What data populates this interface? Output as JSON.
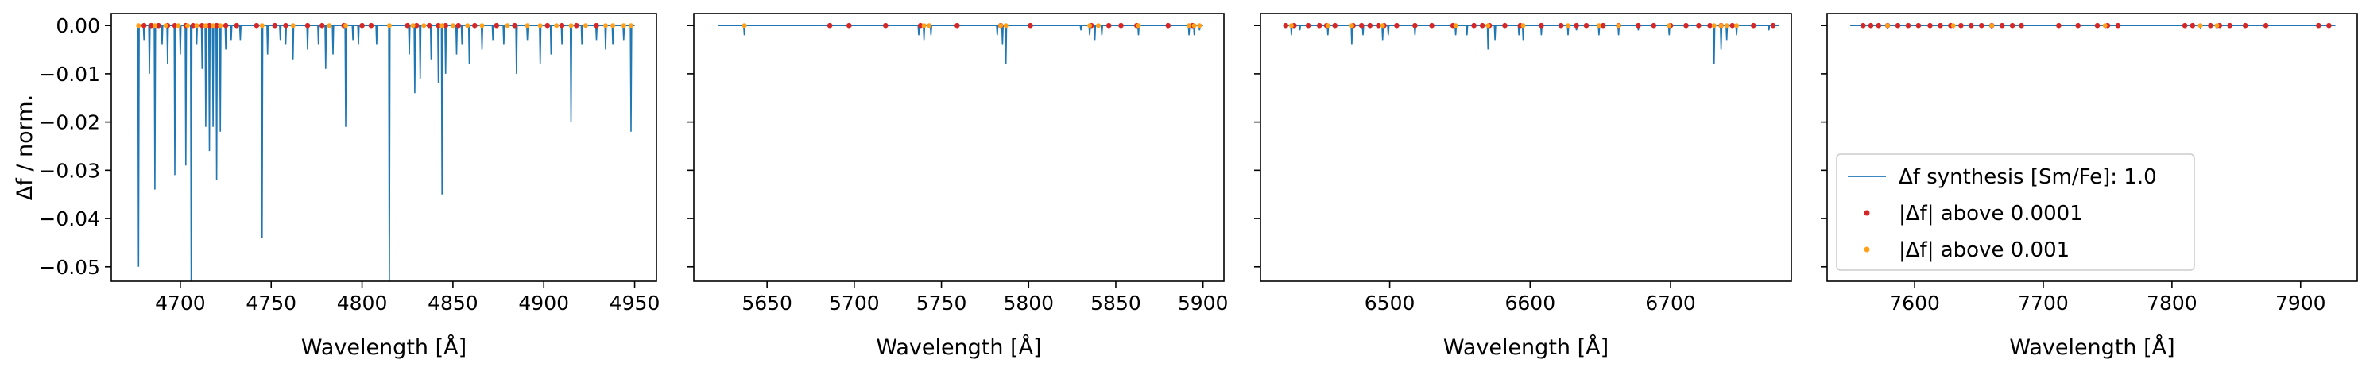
{
  "chart_data": [
    {
      "type": "line",
      "panel": 1,
      "xlabel": "Wavelength [Å]",
      "ylabel": "Δf / norm.",
      "xlim": [
        4662,
        4962
      ],
      "ylim": [
        -0.053,
        0.0025
      ],
      "xticks": [
        4700,
        4750,
        4800,
        4850,
        4900,
        4950
      ],
      "yticks": [
        0.0,
        -0.01,
        -0.02,
        -0.03,
        -0.04,
        -0.05
      ],
      "ytick_labels": [
        "0.00",
        "−0.01",
        "−0.02",
        "−0.03",
        "−0.04",
        "−0.05"
      ],
      "line_range": [
        4676,
        4950
      ],
      "dips": [
        [
          4677,
          -0.05
        ],
        [
          4680,
          -0.003
        ],
        [
          4683,
          -0.01
        ],
        [
          4686,
          -0.034
        ],
        [
          4690,
          -0.004
        ],
        [
          4693,
          -0.008
        ],
        [
          4697,
          -0.031
        ],
        [
          4700,
          -0.006
        ],
        [
          4703,
          -0.029
        ],
        [
          4706,
          -0.055
        ],
        [
          4709,
          -0.004
        ],
        [
          4712,
          -0.009
        ],
        [
          4714,
          -0.021
        ],
        [
          4716,
          -0.026
        ],
        [
          4718,
          -0.021
        ],
        [
          4720,
          -0.032
        ],
        [
          4722,
          -0.022
        ],
        [
          4725,
          -0.005
        ],
        [
          4728,
          -0.003
        ],
        [
          4733,
          -0.003
        ],
        [
          4745,
          -0.044
        ],
        [
          4748,
          -0.006
        ],
        [
          4755,
          -0.003
        ],
        [
          4758,
          -0.004
        ],
        [
          4762,
          -0.007
        ],
        [
          4770,
          -0.005
        ],
        [
          4776,
          -0.004
        ],
        [
          4780,
          -0.009
        ],
        [
          4784,
          -0.006
        ],
        [
          4791,
          -0.021
        ],
        [
          4795,
          -0.003
        ],
        [
          4798,
          -0.004
        ],
        [
          4808,
          -0.004
        ],
        [
          4815,
          -0.055
        ],
        [
          4826,
          -0.006
        ],
        [
          4829,
          -0.014
        ],
        [
          4832,
          -0.011
        ],
        [
          4838,
          -0.007
        ],
        [
          4842,
          -0.012
        ],
        [
          4844,
          -0.035
        ],
        [
          4846,
          -0.01
        ],
        [
          4852,
          -0.006
        ],
        [
          4855,
          -0.004
        ],
        [
          4859,
          -0.008
        ],
        [
          4866,
          -0.005
        ],
        [
          4872,
          -0.003
        ],
        [
          4878,
          -0.004
        ],
        [
          4885,
          -0.01
        ],
        [
          4891,
          -0.003
        ],
        [
          4898,
          -0.008
        ],
        [
          4904,
          -0.006
        ],
        [
          4910,
          -0.004
        ],
        [
          4915,
          -0.02
        ],
        [
          4921,
          -0.004
        ],
        [
          4929,
          -0.003
        ],
        [
          4934,
          -0.005
        ],
        [
          4938,
          -0.004
        ],
        [
          4944,
          -0.003
        ],
        [
          4948,
          -0.022
        ]
      ],
      "above_1e4": [
        4680,
        4684,
        4688,
        4693,
        4697,
        4703,
        4707,
        4712,
        4716,
        4720,
        4725,
        4731,
        4742,
        4752,
        4758,
        4770,
        4778,
        4790,
        4800,
        4805,
        4825,
        4830,
        4837,
        4842,
        4846,
        4853,
        4862,
        4874,
        4884,
        4902,
        4910,
        4918,
        4929
      ],
      "above_1e3": [
        4677,
        4686,
        4692,
        4699,
        4704,
        4709,
        4714,
        4718,
        4722,
        4745,
        4762,
        4782,
        4791,
        4815,
        4828,
        4834,
        4844,
        4850,
        4858,
        4866,
        4880,
        4891,
        4898,
        4907,
        4915,
        4923,
        4934,
        4938,
        4944,
        4948
      ]
    },
    {
      "type": "line",
      "panel": 2,
      "xlabel": "Wavelength [Å]",
      "xlim": [
        5608,
        5912
      ],
      "ylim": [
        -0.053,
        0.0025
      ],
      "xticks": [
        5650,
        5700,
        5750,
        5800,
        5850,
        5900
      ],
      "line_range": [
        5622,
        5900
      ],
      "dips": [
        [
          5637,
          -0.002
        ],
        [
          5737,
          -0.002
        ],
        [
          5740,
          -0.003
        ],
        [
          5744,
          -0.002
        ],
        [
          5782,
          -0.002
        ],
        [
          5785,
          -0.004
        ],
        [
          5787,
          -0.008
        ],
        [
          5830,
          -0.001
        ],
        [
          5835,
          -0.002
        ],
        [
          5838,
          -0.003
        ],
        [
          5842,
          -0.002
        ],
        [
          5863,
          -0.002
        ],
        [
          5892,
          -0.002
        ],
        [
          5895,
          -0.002
        ],
        [
          5898,
          -0.001
        ]
      ],
      "above_1e4": [
        5686,
        5697,
        5718,
        5738,
        5759,
        5784,
        5801,
        5836,
        5846,
        5853,
        5862,
        5880,
        5894
      ],
      "above_1e3": [
        5637,
        5740,
        5743,
        5784,
        5787,
        5835,
        5840,
        5863,
        5892,
        5895,
        5898
      ]
    },
    {
      "type": "line",
      "panel": 3,
      "xlabel": "Wavelength [Å]",
      "xlim": [
        6408,
        6786
      ],
      "ylim": [
        -0.053,
        0.0025
      ],
      "xticks": [
        6500,
        6600,
        6700
      ],
      "line_range": [
        6425,
        6777
      ],
      "dips": [
        [
          6430,
          -0.002
        ],
        [
          6436,
          -0.001
        ],
        [
          6456,
          -0.002
        ],
        [
          6473,
          -0.004
        ],
        [
          6481,
          -0.002
        ],
        [
          6495,
          -0.003
        ],
        [
          6499,
          -0.002
        ],
        [
          6518,
          -0.002
        ],
        [
          6547,
          -0.002
        ],
        [
          6555,
          -0.002
        ],
        [
          6570,
          -0.005
        ],
        [
          6575,
          -0.003
        ],
        [
          6592,
          -0.002
        ],
        [
          6595,
          -0.003
        ],
        [
          6608,
          -0.002
        ],
        [
          6627,
          -0.002
        ],
        [
          6633,
          -0.001
        ],
        [
          6649,
          -0.002
        ],
        [
          6663,
          -0.002
        ],
        [
          6677,
          -0.001
        ],
        [
          6699,
          -0.002
        ],
        [
          6731,
          -0.008
        ],
        [
          6736,
          -0.005
        ],
        [
          6740,
          -0.003
        ],
        [
          6747,
          -0.002
        ],
        [
          6770,
          -0.001
        ]
      ],
      "above_1e4": [
        6426,
        6432,
        6442,
        6450,
        6455,
        6461,
        6474,
        6480,
        6486,
        6492,
        6496,
        6505,
        6518,
        6530,
        6545,
        6560,
        6566,
        6571,
        6582,
        6593,
        6608,
        6622,
        6633,
        6640,
        6652,
        6663,
        6677,
        6688,
        6700,
        6711,
        6720,
        6728,
        6736,
        6744,
        6759,
        6773
      ],
      "above_1e3": [
        6430,
        6456,
        6473,
        6495,
        6547,
        6570,
        6595,
        6627,
        6649,
        6663,
        6699,
        6731,
        6736,
        6740,
        6747
      ]
    },
    {
      "type": "line",
      "panel": 4,
      "xlabel": "Wavelength [Å]",
      "xlim": [
        7532,
        7944
      ],
      "ylim": [
        -0.053,
        0.0025
      ],
      "xticks": [
        7600,
        7700,
        7800,
        7900
      ],
      "line_range": [
        7550,
        7927
      ],
      "dips": [
        [
          7579,
          -0.0006
        ],
        [
          7630,
          -0.0005
        ],
        [
          7660,
          -0.0007
        ],
        [
          7748,
          -0.0005
        ],
        [
          7822,
          -0.0004
        ],
        [
          7835,
          -0.0006
        ]
      ],
      "above_1e4": [
        7560,
        7566,
        7572,
        7579,
        7587,
        7595,
        7603,
        7612,
        7620,
        7628,
        7636,
        7644,
        7652,
        7660,
        7668,
        7676,
        7683,
        7712,
        7727,
        7742,
        7750,
        7758,
        7810,
        7816,
        7830,
        7837,
        7845,
        7857,
        7873,
        7914,
        7922
      ],
      "above_1e3": [
        7579,
        7630,
        7660,
        7748,
        7822,
        7835
      ]
    }
  ],
  "legend": {
    "location": "lower-left",
    "panel": 4,
    "entries": [
      {
        "label": "Δf synthesis [Sm/Fe]: 1.0",
        "kind": "line",
        "color": "#1f77b4"
      },
      {
        "label": "|Δf| above 0.0001",
        "kind": "marker",
        "color": "#d62728"
      },
      {
        "label": "|Δf| above 0.001",
        "kind": "marker",
        "color": "#ff9f1a"
      }
    ]
  },
  "colors": {
    "line": "#1f77b4",
    "above_1e4": "#d62728",
    "above_1e3": "#ff9f1a"
  },
  "grid": false
}
